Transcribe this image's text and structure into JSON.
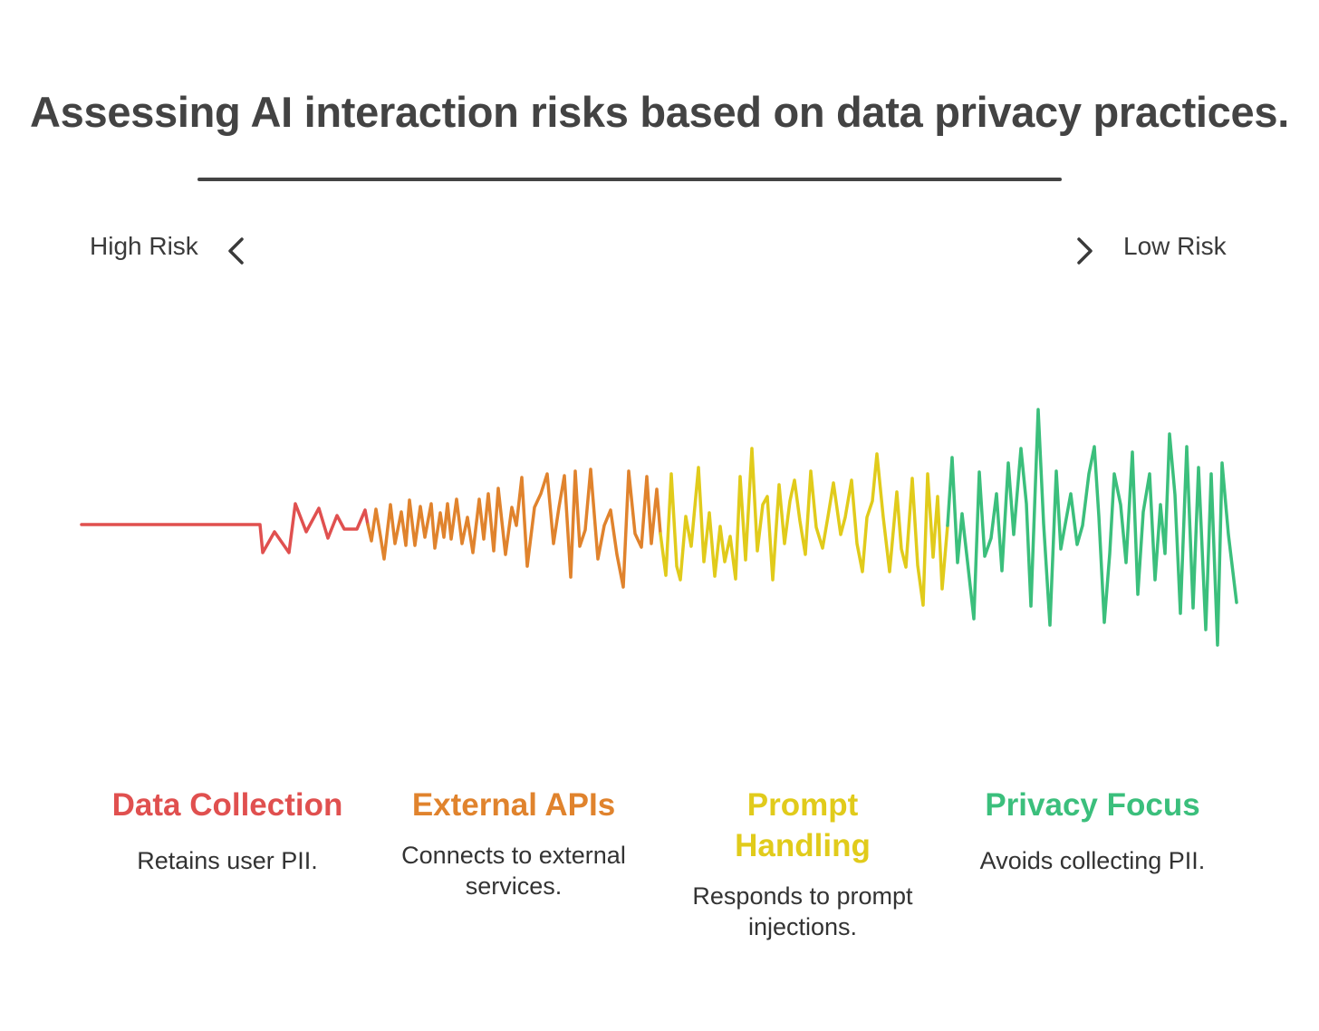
{
  "title": "Assessing AI interaction risks based on data privacy practices.",
  "scale": {
    "left_label": "High Risk",
    "right_label": "Low Risk",
    "left_icon": "chevron-left-icon",
    "right_icon": "chevron-right-icon"
  },
  "segments": [
    {
      "title": "Data Collection",
      "description": "Retains user PII.",
      "color": "#E0504F"
    },
    {
      "title": "External APIs",
      "description": "Connects to external services.",
      "color": "#E0832D"
    },
    {
      "title": "Prompt Handling",
      "description": "Responds to prompt injections.",
      "color": "#E1CB1B"
    },
    {
      "title": "Privacy Focus",
      "description": "Avoids collecting PII.",
      "color": "#3BBF7C"
    }
  ]
}
